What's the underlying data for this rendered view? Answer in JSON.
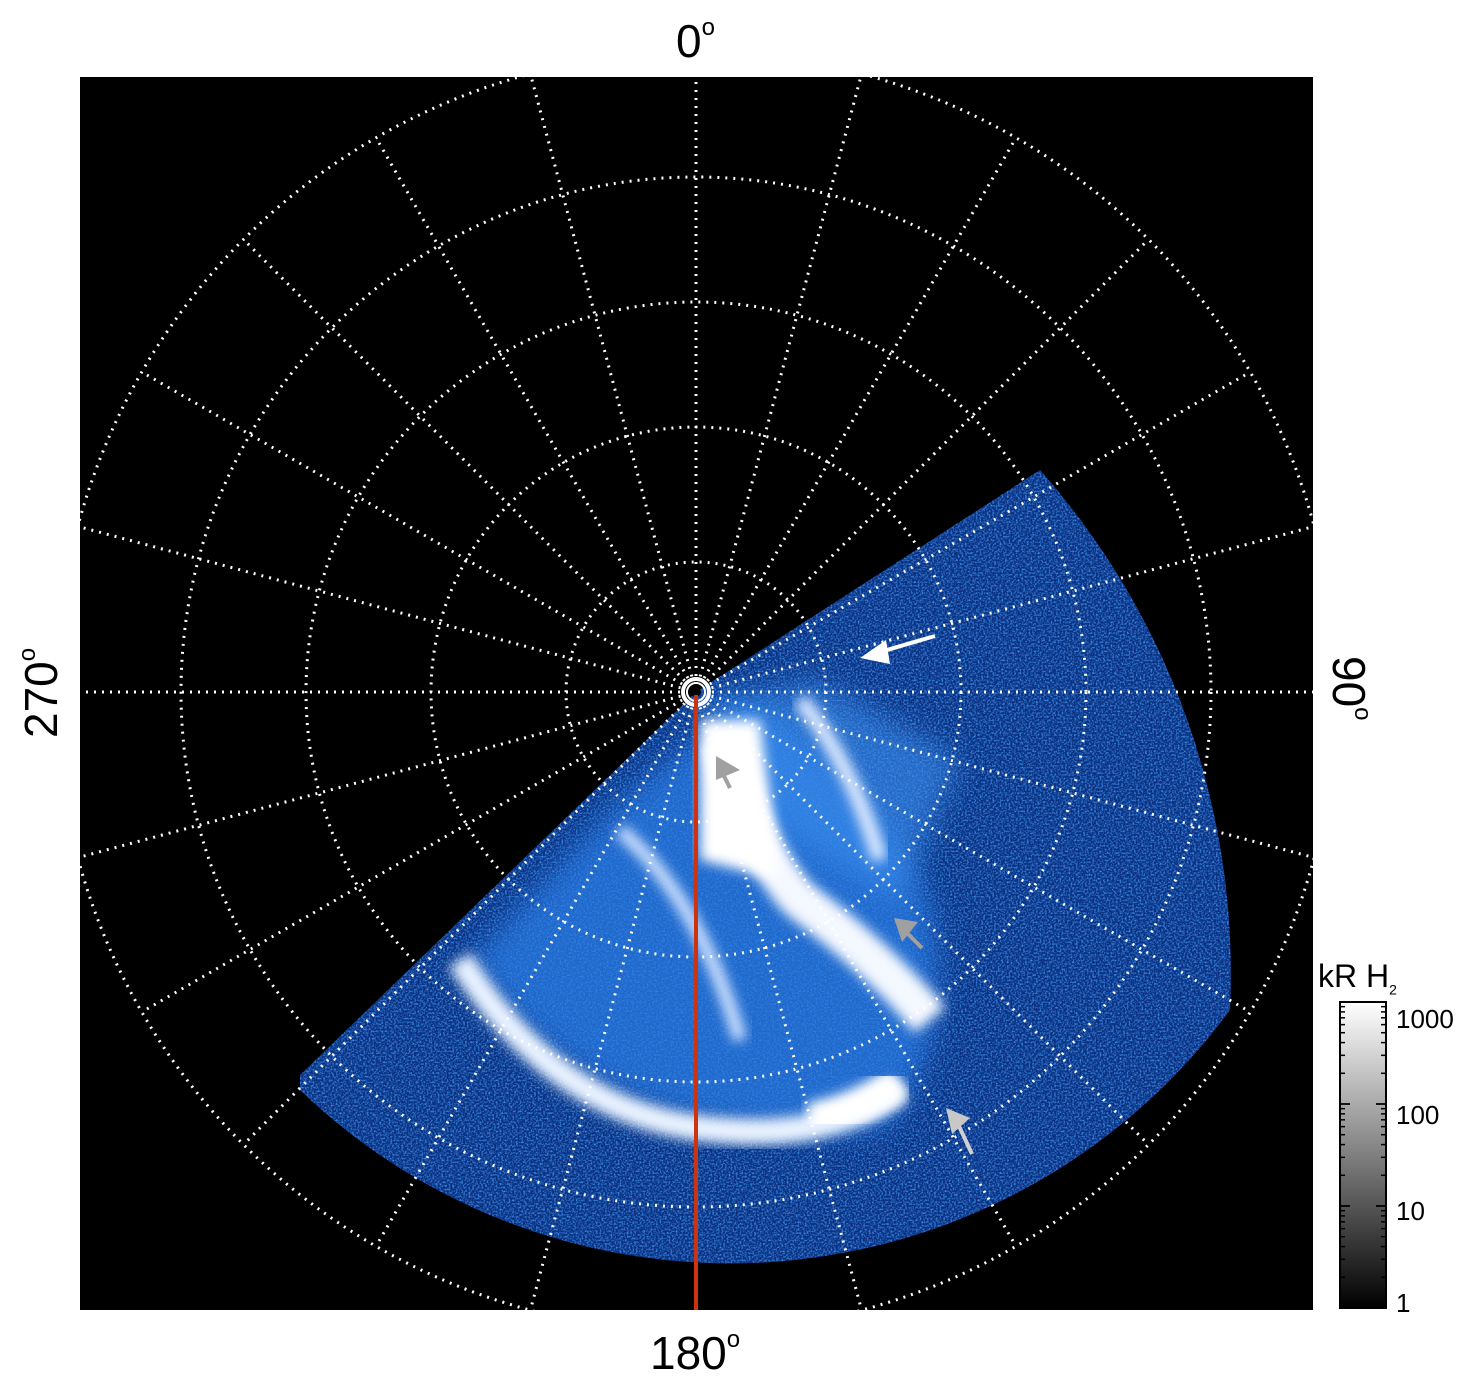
{
  "figure": {
    "labels": {
      "top": "0",
      "bottom": "180",
      "left": "270",
      "right": "90",
      "degree_symbol": "o"
    },
    "colorbar": {
      "title_main": "kR H",
      "title_sub": "2",
      "ticks": [
        "1000",
        "100",
        "10",
        "1"
      ]
    },
    "colors": {
      "background": "#000000",
      "aurora_dim": "#0a3a9a",
      "aurora_mid": "#1a6fe0",
      "aurora_bright": "#ffffff",
      "grid": "#ffffff",
      "meridian": "#cc3311",
      "arrow_white": "#ffffff",
      "arrow_gray": "#a0a0a0"
    },
    "icons": [
      "arrow-white-icon",
      "arrow-gray-icon"
    ]
  }
}
